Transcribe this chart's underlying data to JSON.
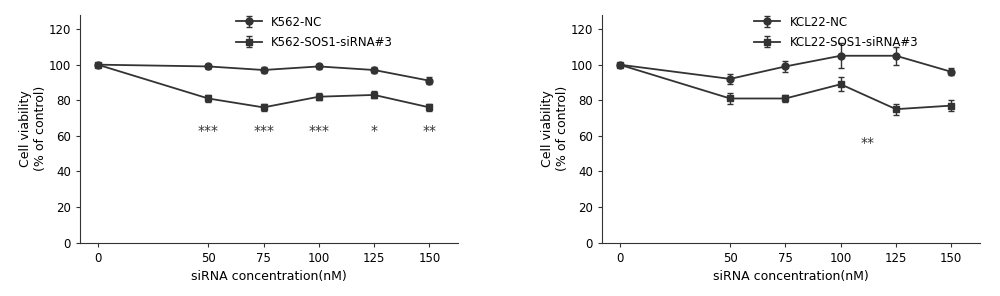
{
  "left": {
    "x": [
      0,
      50,
      75,
      100,
      125,
      150
    ],
    "nc_y": [
      100,
      99,
      97,
      99,
      97,
      91
    ],
    "nc_err": [
      0.8,
      1.5,
      1.5,
      1.5,
      1.5,
      2
    ],
    "sirna_y": [
      100,
      81,
      76,
      82,
      83,
      76
    ],
    "sirna_err": [
      0.8,
      2,
      2,
      2,
      2,
      2
    ],
    "nc_label": "K562-NC",
    "sirna_label": "K562-SOS1-siRNA#3",
    "xlabel": "siRNA concentration(nM)",
    "ylabel": "Cell viability\n(% of control)",
    "ylim": [
      0,
      128
    ],
    "yticks": [
      0,
      20,
      40,
      60,
      80,
      100,
      120
    ],
    "sig_labels": [
      "***",
      "***",
      "***",
      "*",
      "**"
    ],
    "sig_x": [
      50,
      75,
      100,
      125,
      150
    ],
    "sig_y": [
      63,
      63,
      63,
      63,
      63
    ]
  },
  "right": {
    "x": [
      0,
      50,
      75,
      100,
      125,
      150
    ],
    "nc_y": [
      100,
      92,
      99,
      105,
      105,
      96
    ],
    "nc_err": [
      0.8,
      3,
      3,
      7,
      5,
      2
    ],
    "sirna_y": [
      100,
      81,
      81,
      89,
      75,
      77
    ],
    "sirna_err": [
      0.8,
      3,
      2,
      4,
      3,
      3
    ],
    "nc_label": "KCL22-NC",
    "sirna_label": "KCL22-SOS1-siRNA#3",
    "xlabel": "siRNA concentration(nM)",
    "ylabel": "Cell viability\n(% of control)",
    "ylim": [
      0,
      128
    ],
    "yticks": [
      0,
      20,
      40,
      60,
      80,
      100,
      120
    ],
    "sig_labels": [
      "**"
    ],
    "sig_x": [
      112
    ],
    "sig_y": [
      56
    ]
  },
  "line_color": "#333333",
  "bg_color": "#ffffff",
  "font_size": 9,
  "tick_font_size": 8.5,
  "sig_font_size": 10,
  "legend_fontsize": 8.5
}
